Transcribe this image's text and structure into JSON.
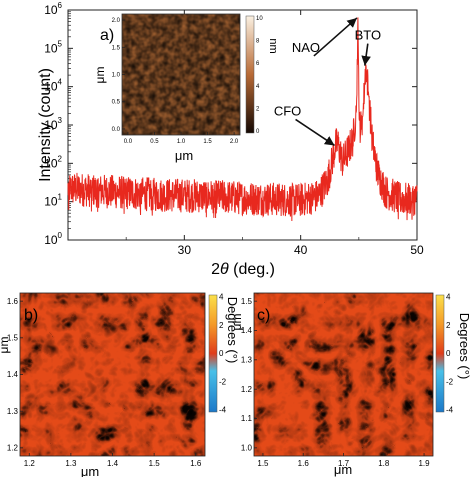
{
  "chart_data": [
    {
      "type": "line",
      "panel": "main",
      "xlabel_prefix": "2",
      "xlabel_symbol": "θ",
      "xlabel_suffix": " (deg.)",
      "ylabel": "Intensity (count)",
      "xlim": [
        20,
        50
      ],
      "ylim": [
        1,
        1000000
      ],
      "yscale": "log",
      "x_ticks": [
        30,
        40,
        50
      ],
      "y_tick_bases": [
        "10",
        "10",
        "10",
        "10",
        "10",
        "10",
        "10"
      ],
      "y_tick_exps": [
        "0",
        "1",
        "2",
        "3",
        "4",
        "5",
        "6"
      ],
      "series": [
        {
          "color": "#e8281e",
          "x": [
            20,
            24,
            28,
            32,
            36,
            40,
            41.5,
            42.3,
            42.8,
            43.0,
            43.2,
            43.6,
            44.1,
            44.5,
            44.8,
            44.92,
            45.02,
            45.15,
            45.35,
            45.6,
            45.85,
            46.15,
            46.6,
            47.3,
            48.5,
            50
          ],
          "y": [
            22,
            18,
            15,
            14,
            12,
            11,
            14,
            35,
            150,
            300,
            330,
            110,
            220,
            420,
            2500,
            700000,
            1500,
            800,
            1800,
            40000,
            6000,
            400,
            60,
            18,
            12,
            12
          ]
        }
      ],
      "annotations": [
        {
          "text": "CFO",
          "x": 43.0,
          "y": 330
        },
        {
          "text": "NAO",
          "x": 44.92,
          "y": 700000
        },
        {
          "text": "BTO",
          "x": 45.6,
          "y": 40000
        }
      ],
      "panel_label": "a)",
      "inset": {
        "type": "heatmap",
        "x_ticks": [
          "0.0",
          "0.5",
          "1.0",
          "1.5",
          "2.0"
        ],
        "y_ticks": [
          "0.0",
          "0.5",
          "1.0",
          "1.5",
          "2.0"
        ],
        "xlabel": "μm",
        "ylabel": "μm",
        "colorbar_ticks": [
          "0",
          "2",
          "4",
          "6",
          "8",
          "10"
        ],
        "colorbar_label": "nm"
      }
    },
    {
      "type": "heatmap",
      "panel": "b",
      "panel_label": "b)",
      "x_ticks": [
        "1.2",
        "1.3",
        "1.4",
        "1.5",
        "1.6"
      ],
      "y_ticks": [
        "1.2",
        "1.3",
        "1.4",
        "1.5",
        "1.6"
      ],
      "xlabel": "μm",
      "ylabel": "μm",
      "colorbar_ticks": [
        "4",
        "2",
        "0",
        "-2",
        "-4"
      ],
      "colorbar_label": "Degrees (°)"
    },
    {
      "type": "heatmap",
      "panel": "c",
      "panel_label": "c)",
      "x_ticks": [
        "1.5",
        "1.6",
        "1.7",
        "1.8",
        "1.9"
      ],
      "y_ticks": [
        "1.0",
        "1.1",
        "1.2",
        "1.3",
        "1.4",
        "1.5"
      ],
      "xlabel": "μm",
      "ylabel": "μm",
      "colorbar_ticks": [
        "4",
        "2",
        "0",
        "-2",
        "-4"
      ],
      "colorbar_label": "Degrees (°)"
    }
  ],
  "colors": {
    "line": "#e8281e",
    "arrow": "#111111",
    "afm_low": "#2a1406",
    "afm_high": "#f5e6cf",
    "phase_blue": "#2a9bd8",
    "phase_red": "#e84418",
    "phase_yellow": "#f7d23a"
  }
}
